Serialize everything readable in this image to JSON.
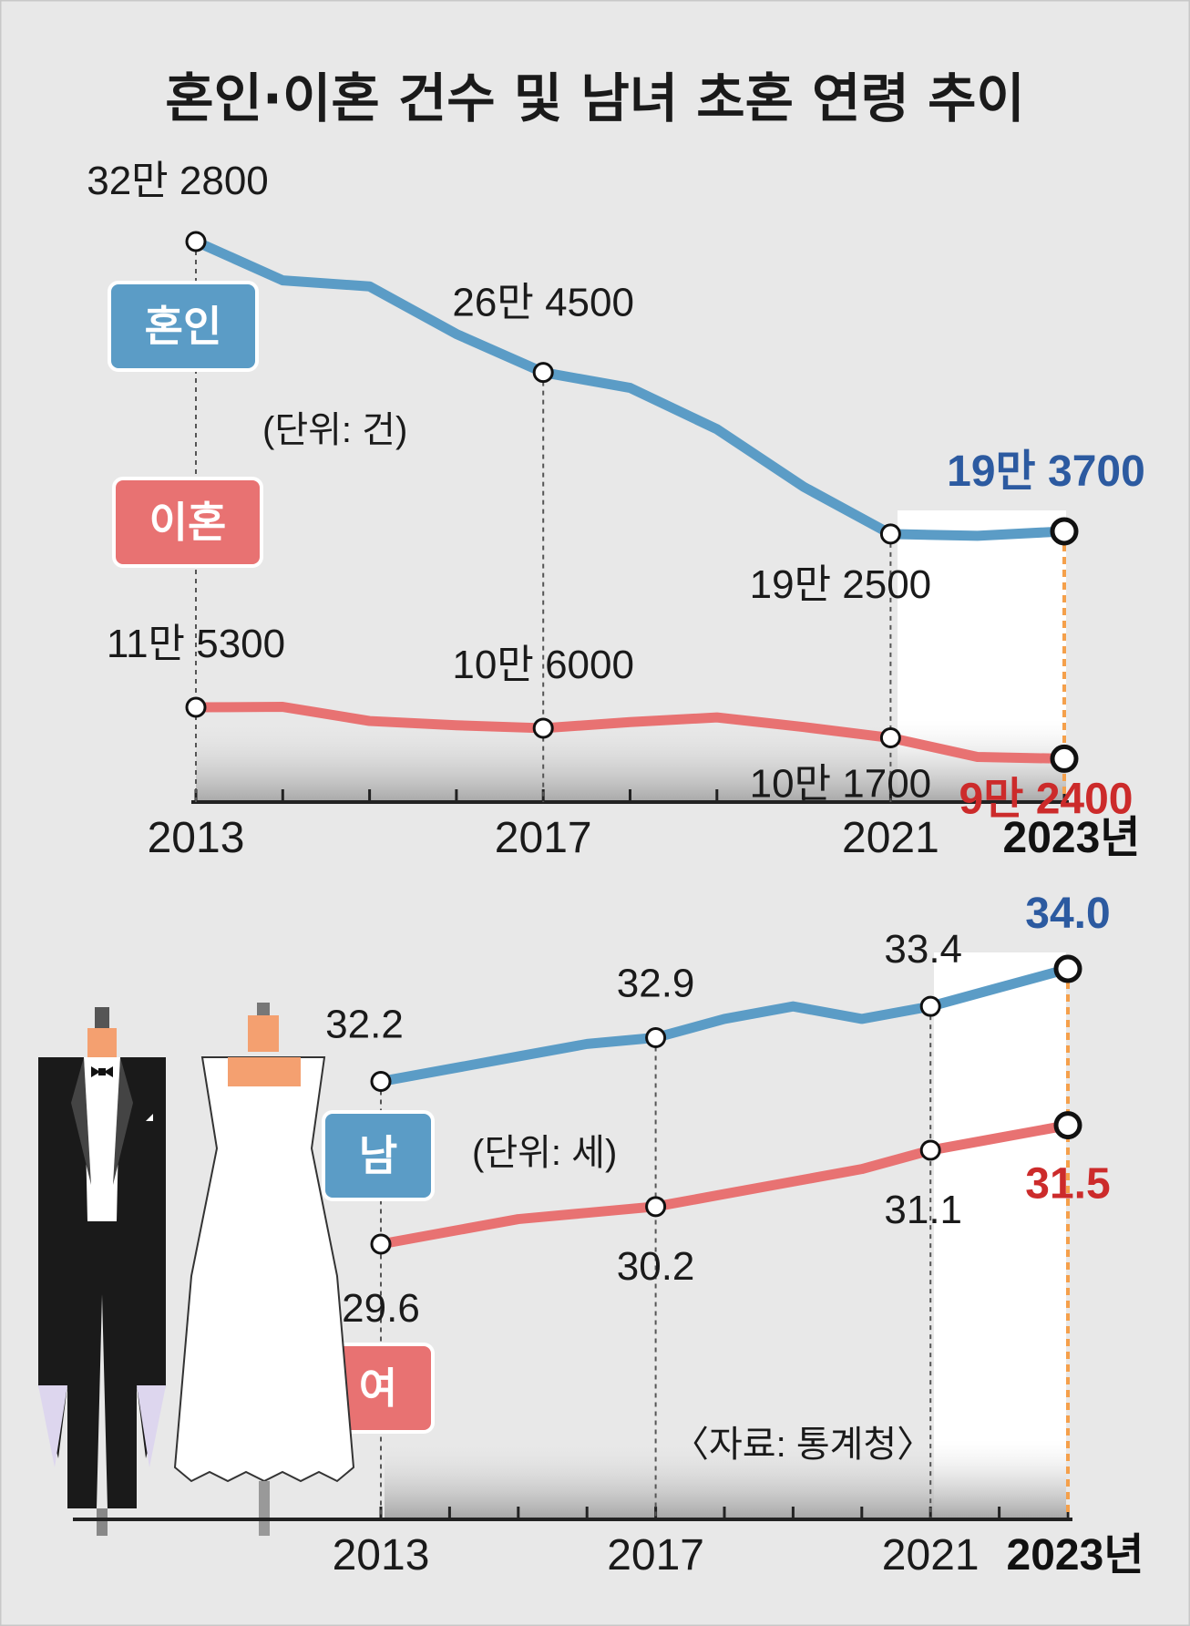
{
  "title": "혼인·이혼 건수 및 남녀 초혼 연령 추이",
  "colors": {
    "blue": "#5b9cc6",
    "red": "#e87272",
    "blue_text": "#2c5aa0",
    "red_text": "#cc2b2b",
    "bg": "#e8e8e8",
    "accent": "#f5a04b"
  },
  "source": "〈자료: 통계청〉",
  "chart_data": [
    {
      "type": "line",
      "unit_label": "(단위: 건)",
      "x": [
        2013,
        2014,
        2015,
        2016,
        2017,
        2018,
        2019,
        2020,
        2021,
        2022,
        2023
      ],
      "x_tick_labels": [
        "2013",
        "2017",
        "2021",
        "2023년"
      ],
      "ylim": [
        0,
        350000
      ],
      "series": [
        {
          "name": "혼인",
          "values": [
            322800,
            305500,
            302800,
            281600,
            264500,
            257600,
            239200,
            213500,
            192500,
            191700,
            193700
          ],
          "labels": [
            {
              "index": 0,
              "text": "32만 2800"
            },
            {
              "index": 4,
              "text": "26만 4500"
            },
            {
              "index": 8,
              "text": "19만 2500"
            },
            {
              "index": 10,
              "text": "19만 3700"
            }
          ]
        },
        {
          "name": "이혼",
          "values": [
            115300,
            115500,
            109200,
            107300,
            106000,
            108700,
            110800,
            106500,
            101700,
            93200,
            92400
          ],
          "labels": [
            {
              "index": 0,
              "text": "11만 5300"
            },
            {
              "index": 4,
              "text": "10만 6000"
            },
            {
              "index": 8,
              "text": "10만 1700"
            },
            {
              "index": 10,
              "text": "9만 2400"
            }
          ]
        }
      ]
    },
    {
      "type": "line",
      "unit_label": "(단위: 세)",
      "x": [
        2013,
        2014,
        2015,
        2016,
        2017,
        2018,
        2019,
        2020,
        2021,
        2022,
        2023
      ],
      "x_tick_labels": [
        "2013",
        "2017",
        "2021",
        "2023년"
      ],
      "ylim": [
        29,
        34.5
      ],
      "series": [
        {
          "name": "남",
          "values": [
            32.2,
            32.4,
            32.6,
            32.8,
            32.9,
            33.2,
            33.4,
            33.2,
            33.4,
            33.7,
            34.0
          ],
          "labels": [
            {
              "index": 0,
              "text": "32.2"
            },
            {
              "index": 4,
              "text": "32.9"
            },
            {
              "index": 8,
              "text": "33.4"
            },
            {
              "index": 10,
              "text": "34.0"
            }
          ]
        },
        {
          "name": "여",
          "values": [
            29.6,
            29.8,
            30.0,
            30.1,
            30.2,
            30.4,
            30.6,
            30.8,
            31.1,
            31.3,
            31.5
          ],
          "labels": [
            {
              "index": 0,
              "text": "29.6"
            },
            {
              "index": 4,
              "text": "30.2"
            },
            {
              "index": 8,
              "text": "31.1"
            },
            {
              "index": 10,
              "text": "31.5"
            }
          ]
        }
      ]
    }
  ]
}
